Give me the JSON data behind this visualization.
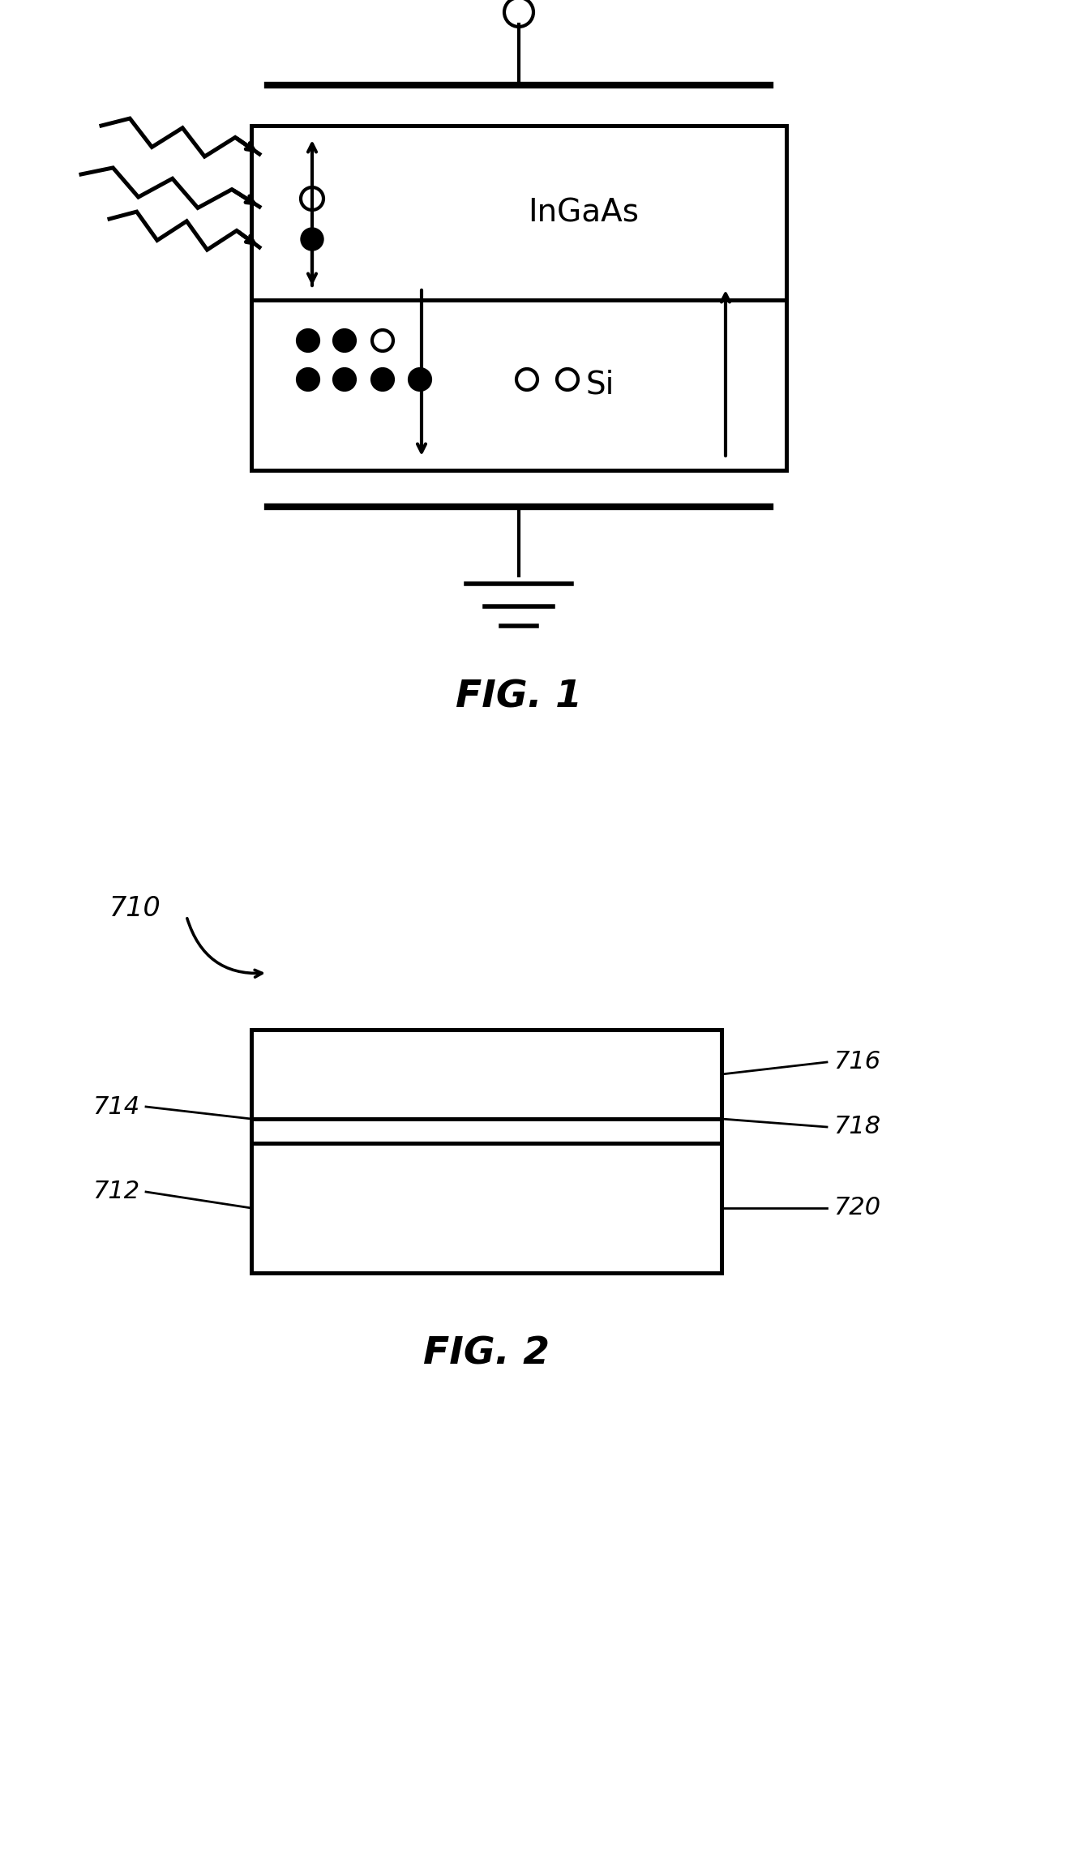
{
  "bg_color": "#ffffff",
  "lw": 2.0,
  "fig1": {
    "title": "FIG. 1",
    "ingaas_label": "InGaAs",
    "si_label": "Si"
  },
  "fig2": {
    "title": "FIG. 2",
    "label_710": "710",
    "label_714": "714",
    "label_716": "716",
    "label_718": "718",
    "label_712": "712",
    "label_720": "720"
  }
}
